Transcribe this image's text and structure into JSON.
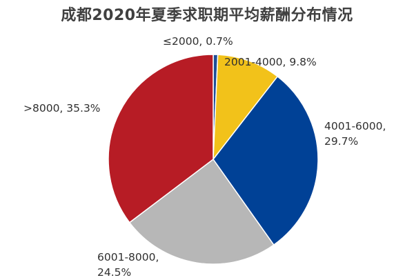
{
  "chart_data": {
    "type": "pie",
    "title": "成都2020年夏季求职期平均薪酬分布情况",
    "slices": [
      {
        "label": "≤2000",
        "value": 0.7,
        "display": [
          "≤2000, 0.7%"
        ],
        "color": "#1f4e96"
      },
      {
        "label": "2001-4000",
        "value": 9.8,
        "display": [
          "2001-4000, 9.8%"
        ],
        "color": "#f2c21a"
      },
      {
        "label": "4001-6000",
        "value": 29.7,
        "display": [
          "4001-6000,",
          "29.7%"
        ],
        "color": "#004196"
      },
      {
        "label": "6001-8000",
        "value": 24.5,
        "display": [
          "6001-8000,",
          "24.5%"
        ],
        "color": "#b7b7b7"
      },
      {
        "label": ">8000",
        "value": 35.3,
        "display": [
          ">8000, 35.3%"
        ],
        "color": "#b71c25"
      }
    ]
  }
}
